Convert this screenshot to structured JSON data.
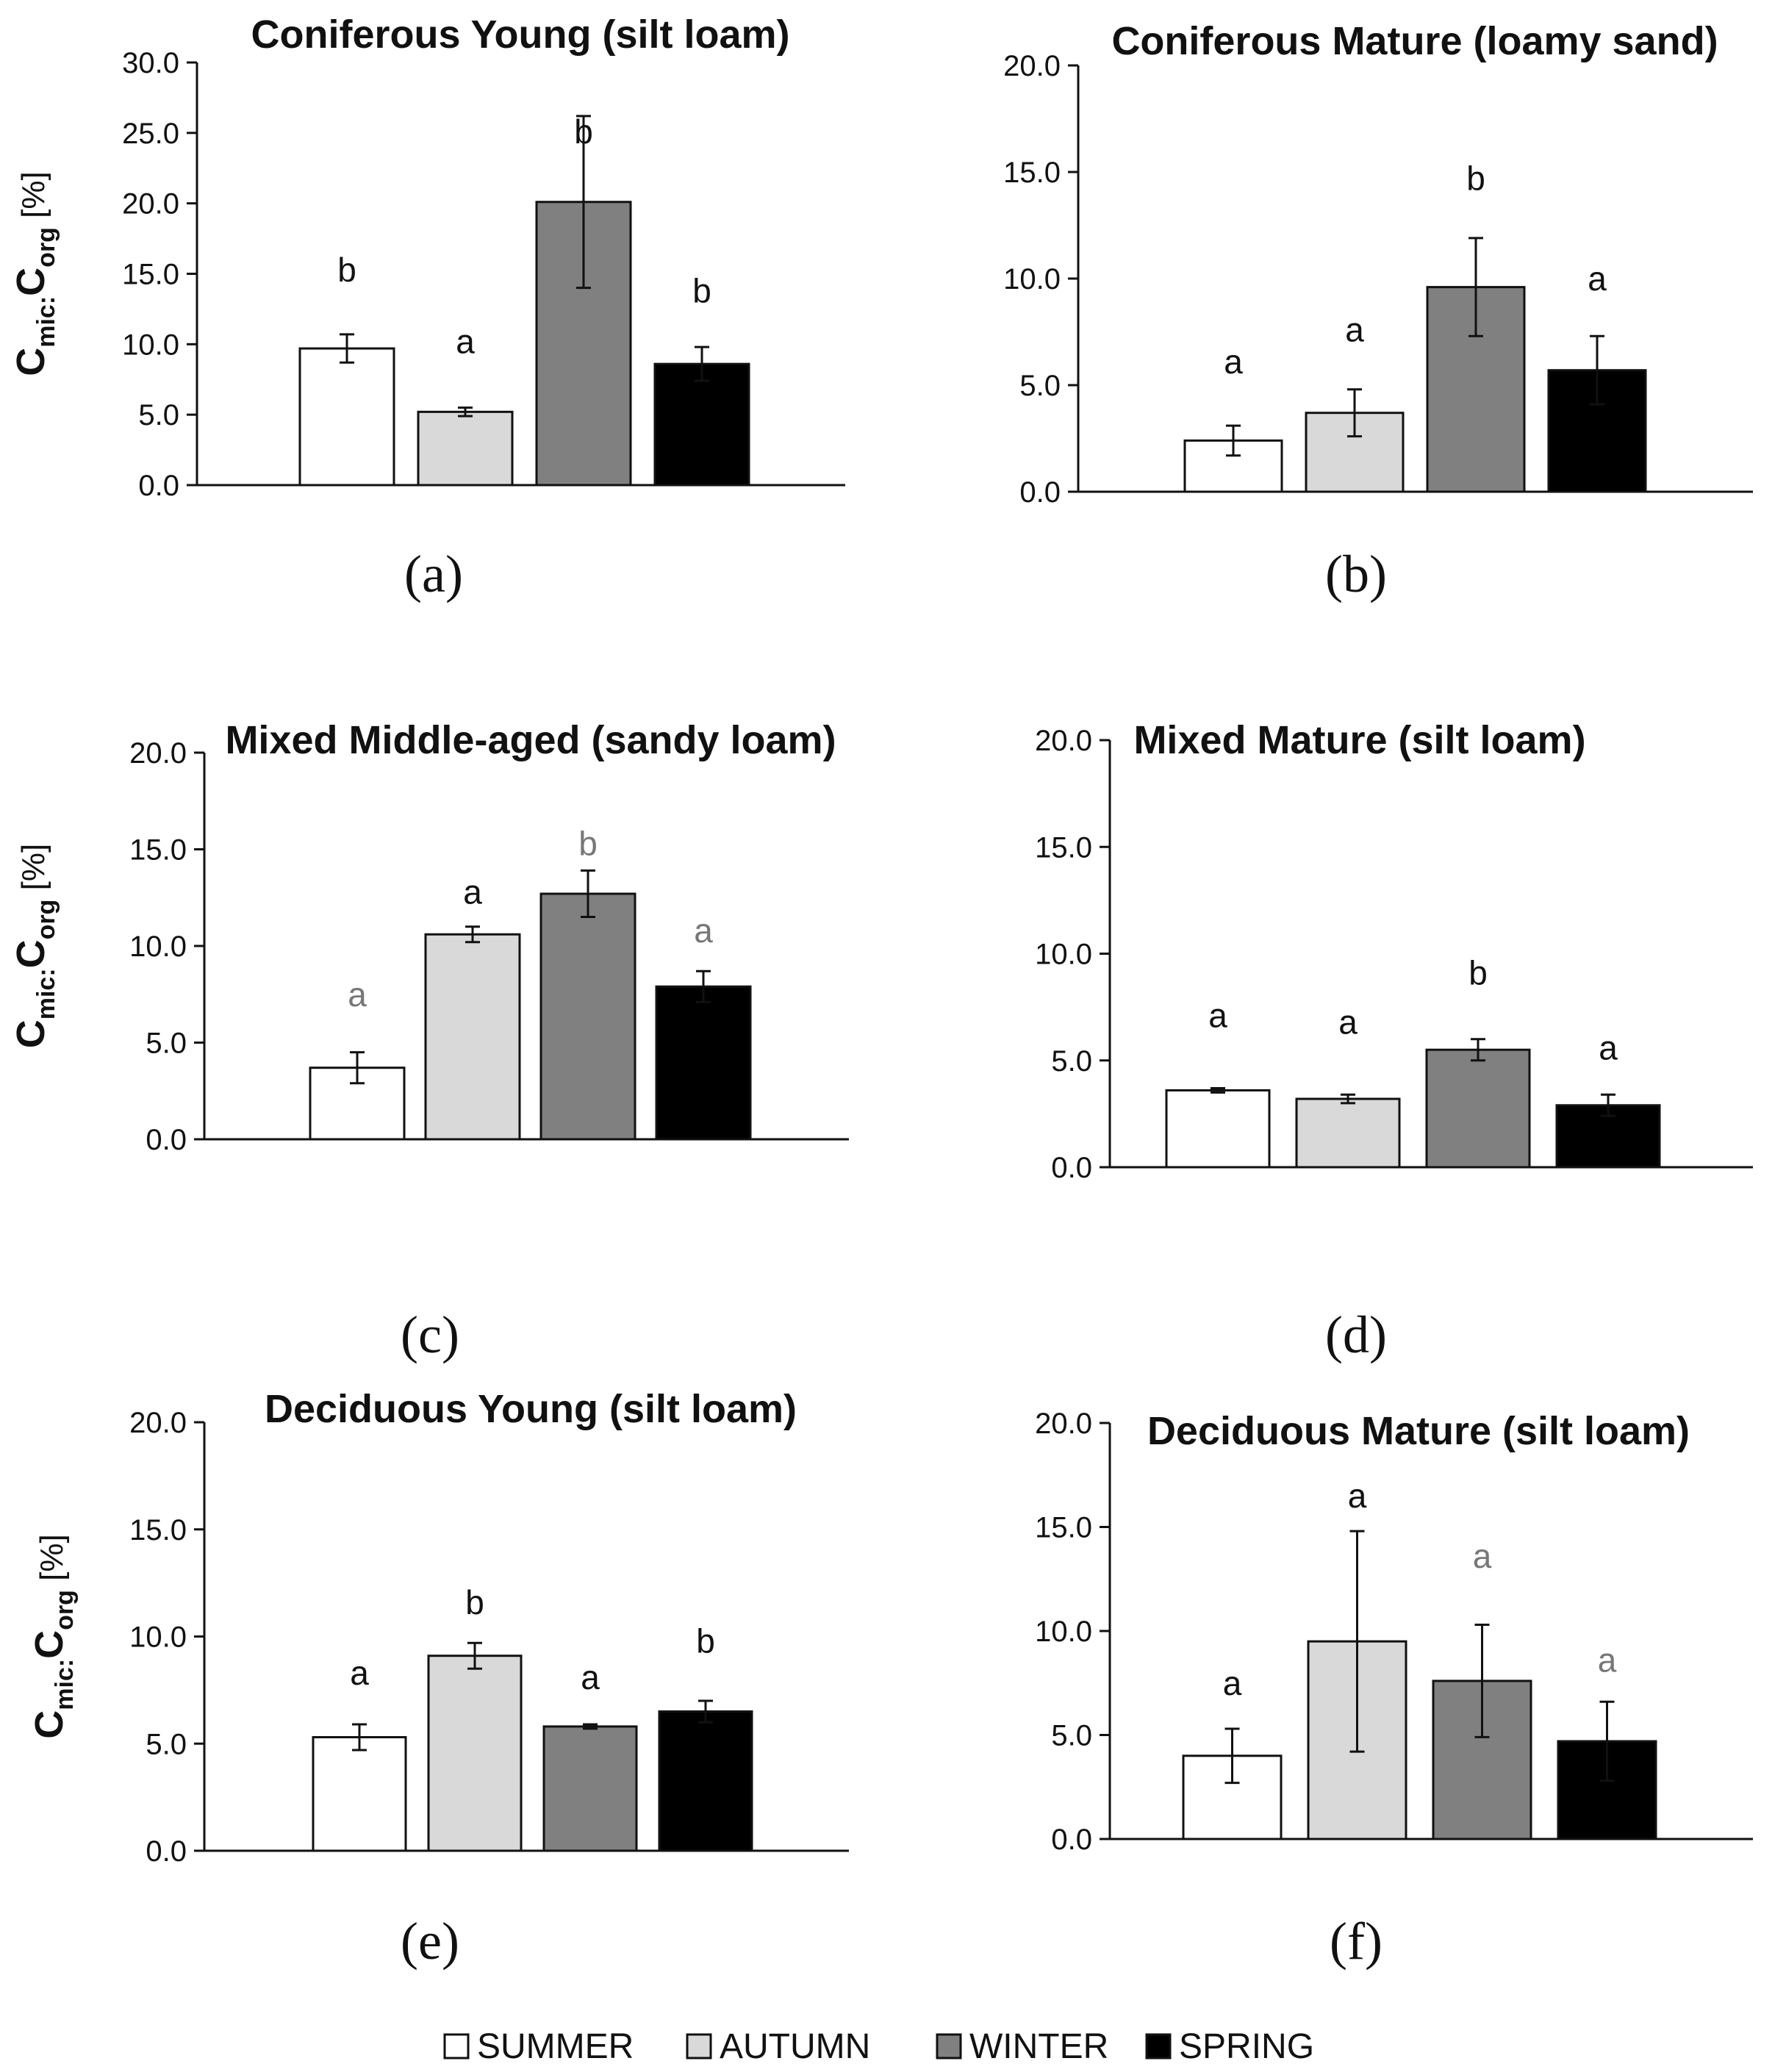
{
  "legend": {
    "items": [
      {
        "label": "SUMMER",
        "color": "#ffffff"
      },
      {
        "label": "AUTUMN",
        "color": "#d9d9d9"
      },
      {
        "label": "WINTER",
        "color": "#808080"
      },
      {
        "label": "SPRING",
        "color": "#000000"
      }
    ]
  },
  "chart_data": [
    {
      "type": "bar",
      "panel": "(a)",
      "title": "Coniferous Young (silt loam)",
      "ylabel_main": "C",
      "ylabel_sub1": "mic:",
      "ylabel_mid": "C",
      "ylabel_sub2": "org",
      "ylabel_unit": " [%]",
      "ylim": [
        0,
        30
      ],
      "yticks": [
        "0.0",
        "5.0",
        "10.0",
        "15.0",
        "20.0",
        "25.0",
        "30.0"
      ],
      "categories": [
        "SUMMER",
        "AUTUMN",
        "WINTER",
        "SPRING"
      ],
      "values": [
        9.7,
        5.2,
        20.1,
        8.6
      ],
      "errors": [
        1.0,
        0.3,
        6.1,
        1.2
      ],
      "letters": [
        "b",
        "a",
        "b",
        "b"
      ],
      "letter_values": [
        15.3,
        10.2,
        25.1,
        13.8
      ],
      "letter_colors": [
        "#111111",
        "#111111",
        "#111111",
        "#111111"
      ]
    },
    {
      "type": "bar",
      "panel": "(b)",
      "title": "Coniferous Mature (loamy sand)",
      "ylim": [
        0,
        20
      ],
      "yticks": [
        "0.0",
        "5.0",
        "10.0",
        "15.0",
        "20.0"
      ],
      "categories": [
        "SUMMER",
        "AUTUMN",
        "WINTER",
        "SPRING"
      ],
      "values": [
        2.4,
        3.7,
        9.6,
        5.7
      ],
      "errors": [
        0.7,
        1.1,
        2.3,
        1.6
      ],
      "letters": [
        "a",
        "a",
        "b",
        "a"
      ],
      "letter_values": [
        6.1,
        7.6,
        14.7,
        10.0
      ],
      "letter_colors": [
        "#111111",
        "#111111",
        "#111111",
        "#111111"
      ]
    },
    {
      "type": "bar",
      "panel": "(c)",
      "title": "Mixed Middle-aged (sandy loam)",
      "ylabel_main": "C",
      "ylabel_sub1": "mic:",
      "ylabel_mid": "C",
      "ylabel_sub2": "org",
      "ylabel_unit": " [%]",
      "ylim": [
        0,
        20
      ],
      "yticks": [
        "0.0",
        "5.0",
        "10.0",
        "15.0",
        "20.0"
      ],
      "categories": [
        "SUMMER",
        "AUTUMN",
        "WINTER",
        "SPRING"
      ],
      "values": [
        3.7,
        10.6,
        12.7,
        7.9
      ],
      "errors": [
        0.8,
        0.4,
        1.2,
        0.8
      ],
      "letters": [
        "a",
        "a",
        "b",
        "a"
      ],
      "letter_values": [
        7.5,
        12.8,
        15.3,
        10.8
      ],
      "letter_colors": [
        "#777777",
        "#111111",
        "#777777",
        "#777777"
      ]
    },
    {
      "type": "bar",
      "panel": "(d)",
      "title": "Mixed Mature (silt loam)",
      "ylim": [
        0,
        20
      ],
      "yticks": [
        "0.0",
        "5.0",
        "10.0",
        "15.0",
        "20.0"
      ],
      "categories": [
        "SUMMER",
        "AUTUMN",
        "WINTER",
        "SPRING"
      ],
      "values": [
        3.6,
        3.2,
        5.5,
        2.9
      ],
      "errors": [
        0.1,
        0.2,
        0.5,
        0.5
      ],
      "letters": [
        "a",
        "a",
        "b",
        "a"
      ],
      "letter_values": [
        7.1,
        6.8,
        9.1,
        5.6
      ],
      "letter_colors": [
        "#111111",
        "#111111",
        "#111111",
        "#111111"
      ]
    },
    {
      "type": "bar",
      "panel": "(e)",
      "title": "Deciduous Young (silt loam)",
      "ylabel_main": "C",
      "ylabel_sub1": "mic:",
      "ylabel_mid": "C",
      "ylabel_sub2": "org",
      "ylabel_unit": " [%]",
      "ylim": [
        0,
        20
      ],
      "yticks": [
        "0.0",
        "5.0",
        "10.0",
        "15.0",
        "20.0"
      ],
      "categories": [
        "SUMMER",
        "AUTUMN",
        "WINTER",
        "SPRING"
      ],
      "values": [
        5.3,
        9.1,
        5.8,
        6.5
      ],
      "errors": [
        0.6,
        0.6,
        0.1,
        0.5
      ],
      "letters": [
        "a",
        "b",
        "a",
        "b"
      ],
      "letter_values": [
        8.3,
        11.6,
        8.1,
        9.8
      ],
      "letter_colors": [
        "#111111",
        "#111111",
        "#111111",
        "#111111"
      ]
    },
    {
      "type": "bar",
      "panel": "(f)",
      "title": "Deciduous Mature (silt loam)",
      "ylim": [
        0,
        20
      ],
      "yticks": [
        "0.0",
        "5.0",
        "10.0",
        "15.0",
        "20.0"
      ],
      "categories": [
        "SUMMER",
        "AUTUMN",
        "WINTER",
        "SPRING"
      ],
      "values": [
        4.0,
        9.5,
        7.6,
        4.7
      ],
      "errors": [
        1.3,
        5.3,
        2.7,
        1.9
      ],
      "letters": [
        "a",
        "a",
        "a",
        "a"
      ],
      "letter_values": [
        7.5,
        16.5,
        13.6,
        8.6
      ],
      "letter_colors": [
        "#111111",
        "#111111",
        "#777777",
        "#777777"
      ]
    }
  ]
}
